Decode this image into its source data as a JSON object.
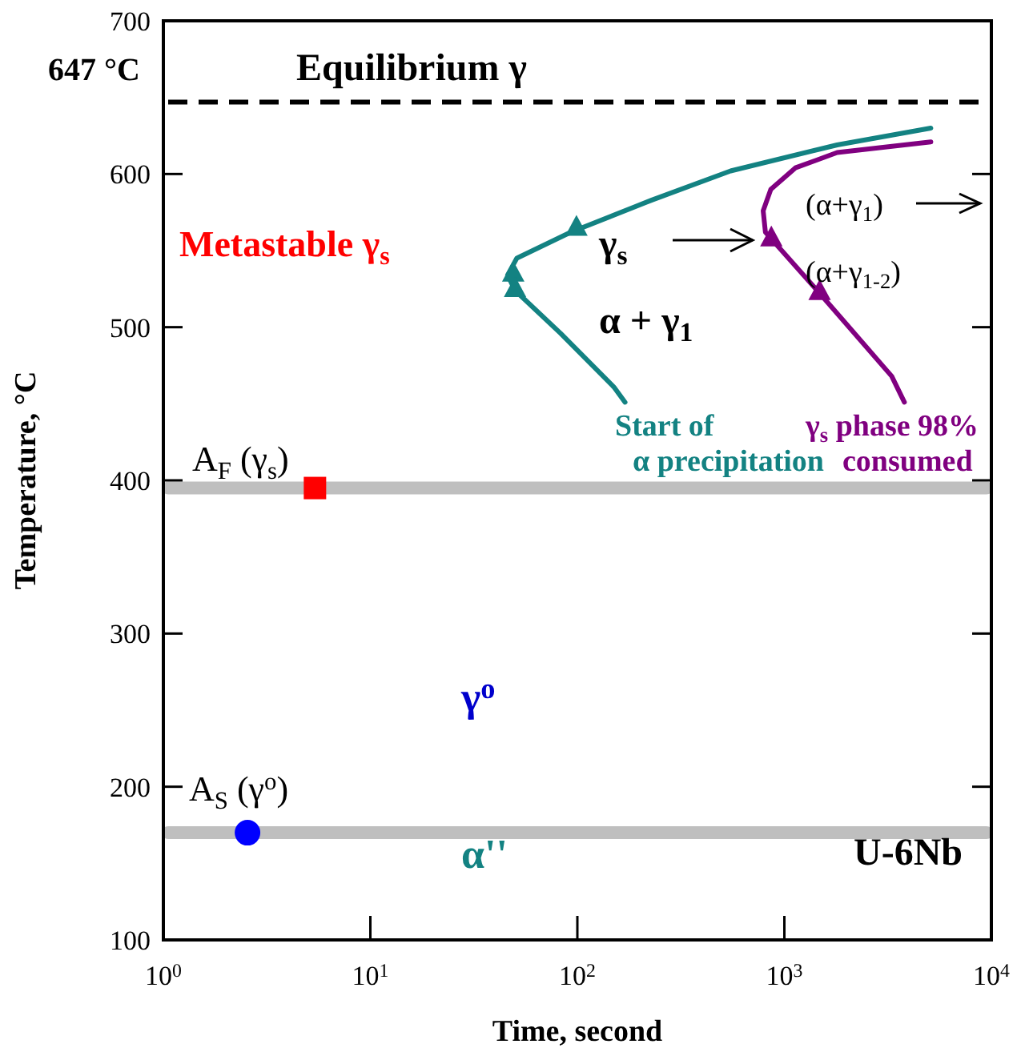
{
  "chart_data": {
    "type": "line",
    "xlabel": "Time, second",
    "ylabel": "Temperature, °C",
    "log": "x",
    "xlim": [
      1,
      10000
    ],
    "ylim": [
      100,
      700
    ],
    "xticks": [
      {
        "value": 1,
        "label": "10$^{0}$"
      },
      {
        "value": 10,
        "label": "10$^{1}$"
      },
      {
        "value": 100,
        "label": "10$^{2}$"
      },
      {
        "value": 1000,
        "label": "10$^{3}$"
      },
      {
        "value": 10000,
        "label": "10$^{4}$"
      }
    ],
    "yticks": [
      100,
      200,
      300,
      400,
      500,
      600,
      700
    ],
    "grid": false,
    "line_style": "solid",
    "marker": "none",
    "series": [
      {
        "color": "#138282",
        "x": [
          5100,
          1800,
          550,
          229,
          93,
          51,
          46,
          50,
          83,
          150,
          170
        ],
        "values": [
          630,
          619,
          602,
          583,
          562,
          545,
          534,
          524,
          496,
          461,
          451
        ]
      },
      {
        "color": "#800080",
        "x": [
          5100,
          1800,
          1130,
          860,
          790,
          810,
          1440,
          3300,
          3800
        ],
        "values": [
          621,
          614,
          604,
          590,
          576,
          562,
          524,
          468,
          451
        ]
      },
      {
        "type": "scatter",
        "marker": "triangle",
        "color": "#138282",
        "x": [
          99,
          49,
          50
        ],
        "values": [
          566,
          536,
          526
        ]
      },
      {
        "type": "scatter",
        "marker": "triangle",
        "color": "#800080",
        "x": [
          865,
          1480
        ],
        "values": [
          559,
          524
        ]
      },
      {
        "type": "scatter",
        "marker": "square",
        "color": "#ff0000",
        "x": [
          5.4
        ],
        "values": [
          395
        ]
      },
      {
        "type": "scatter",
        "marker": "circle",
        "color": "#0000ff",
        "x": [
          2.55
        ],
        "values": [
          170
        ]
      }
    ],
    "ref_lines": [
      {
        "axis": "y",
        "value": 647,
        "label": "Equilibrium γ",
        "color": "#000000",
        "line_style": "dashed"
      },
      {
        "axis": "y",
        "value": 395,
        "label": "A$_{F}$ (γ$_{s}$)",
        "color": "#bfbfbf",
        "line_style": "solid"
      },
      {
        "axis": "y",
        "value": 170,
        "label": "A$_{S}$ (γ$^{o}$)",
        "color": "#bfbfbf",
        "line_style": "solid"
      }
    ],
    "annotations": [
      "647 °C",
      "Metastable γ$_{s}$",
      "γ$_{s}$",
      "α + γ$_{1}$",
      "(α+γ$_{1}$)",
      "(α+γ$_{1-2}$)",
      "Start of",
      "α precipitation",
      "γ$_{s}$ phase 98%",
      "consumed",
      "γ$^{o}$",
      "α''",
      "U-6Nb"
    ]
  }
}
